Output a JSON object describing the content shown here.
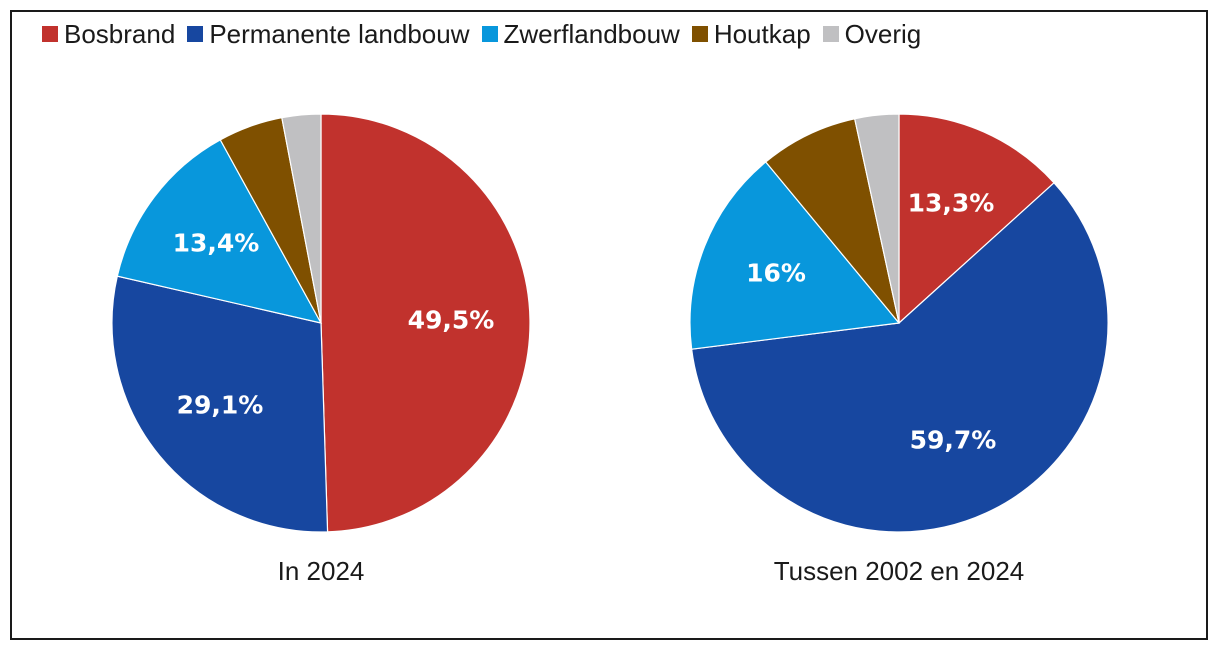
{
  "chart_data": [
    {
      "type": "pie",
      "title": "In 2024",
      "categories": [
        "Bosbrand",
        "Permanente landbouw",
        "Zwerflandbouw",
        "Houtkap",
        "Overig"
      ],
      "values": [
        49.5,
        29.1,
        13.4,
        5.0,
        3.0
      ],
      "labels": [
        "49,5%",
        "29,1%",
        "13,4%",
        "",
        ""
      ]
    },
    {
      "type": "pie",
      "title": "Tussen 2002 en 2024",
      "categories": [
        "Bosbrand",
        "Permanente landbouw",
        "Zwerflandbouw",
        "Houtkap",
        "Overig"
      ],
      "values": [
        13.3,
        59.7,
        16.0,
        7.6,
        3.4
      ],
      "labels": [
        "13,3%",
        "59,7%",
        "16%",
        "",
        ""
      ]
    }
  ],
  "legend": [
    {
      "label": "Bosbrand",
      "color": "#c1322d"
    },
    {
      "label": "Permanente landbouw",
      "color": "#1747a0"
    },
    {
      "label": "Zwerflandbouw",
      "color": "#0897dc"
    },
    {
      "label": "Houtkap",
      "color": "#7f5000"
    },
    {
      "label": "Overig",
      "color": "#c0c0c2"
    }
  ]
}
